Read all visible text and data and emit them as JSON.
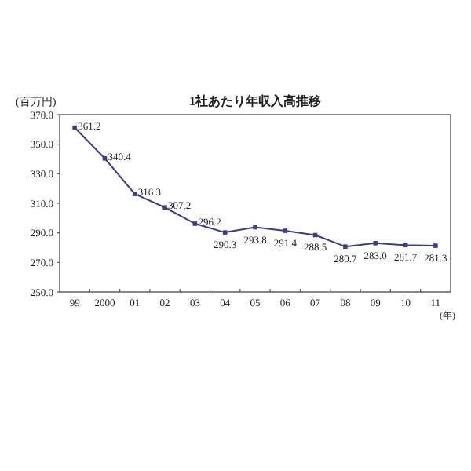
{
  "chart_data": {
    "type": "line",
    "title": "1社あたり年収入高推移",
    "ylabel": "(百万円)",
    "xlabel": "(年)",
    "categories": [
      "99",
      "2000",
      "01",
      "02",
      "03",
      "04",
      "05",
      "06",
      "07",
      "08",
      "09",
      "10",
      "11"
    ],
    "series": [
      {
        "color": "#3c3c8c",
        "values": [
          361.2,
          340.4,
          316.3,
          307.2,
          296.2,
          290.3,
          293.8,
          291.4,
          288.5,
          280.7,
          283.0,
          281.7,
          281.3
        ],
        "value_labels": [
          "361.2",
          "340.4",
          "316.3",
          "307.2",
          "296.2",
          "290.3",
          "293.8",
          "291.4",
          "288.5",
          "280.7",
          "283.0",
          "281.7",
          "281.3"
        ]
      }
    ],
    "ylim": [
      250,
      370
    ],
    "yticks": [
      {
        "value": 250,
        "label": "250.0"
      },
      {
        "value": 270,
        "label": "270.0"
      },
      {
        "value": 290,
        "label": "290.0"
      },
      {
        "value": 310,
        "label": "310.0"
      },
      {
        "value": 330,
        "label": "330.0"
      },
      {
        "value": 350,
        "label": "350.0"
      },
      {
        "value": 370,
        "label": "370.0"
      }
    ],
    "marker": "square",
    "grid": false
  }
}
